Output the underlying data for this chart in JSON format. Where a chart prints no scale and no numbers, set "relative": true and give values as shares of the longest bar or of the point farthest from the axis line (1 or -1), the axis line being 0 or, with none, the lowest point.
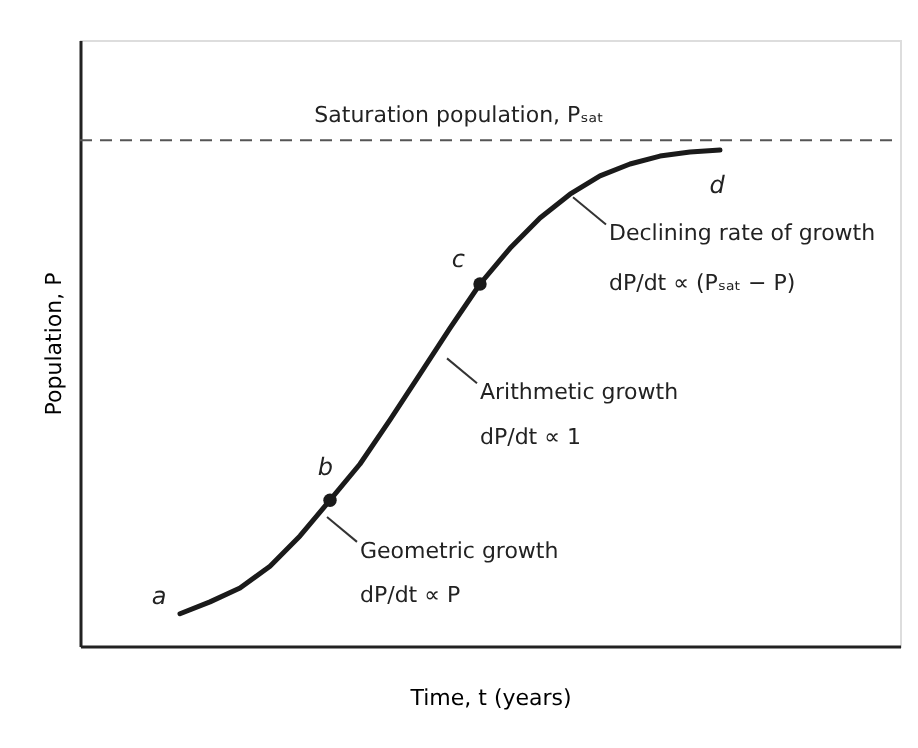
{
  "chart_data": {
    "type": "line",
    "relative": true,
    "xlabel": "Time, t (years)",
    "ylabel": "Population, P",
    "categories": [
      null,
      null,
      null,
      null,
      null,
      null,
      null,
      null,
      null,
      null,
      null,
      null,
      null,
      null,
      null,
      null,
      null,
      null,
      null
    ],
    "series": [
      {
        "color": "#1a1a1a",
        "values": [
          0.065,
          0.089,
          0.117,
          0.161,
          0.222,
          0.294,
          0.367,
          0.456,
          0.548,
          0.641,
          0.73,
          0.802,
          0.863,
          0.911,
          0.948,
          0.972,
          0.988,
          0.996,
          1
        ]
      }
    ],
    "ref_lines": [
      {
        "axis": "y",
        "value": 1.02,
        "label": "Saturation population, Pₛₐₜ",
        "line_style": "dashed",
        "color": "#555555"
      }
    ],
    "annotations": [
      "a",
      "b",
      "c",
      "d",
      "Declining rate of growth",
      "dP/dt ∝ (Pₛₐₜ − P)",
      "Arithmetic growth",
      "dP/dt ∝ 1",
      "Geometric growth",
      "dP/dt ∝ P"
    ],
    "grid": false
  }
}
